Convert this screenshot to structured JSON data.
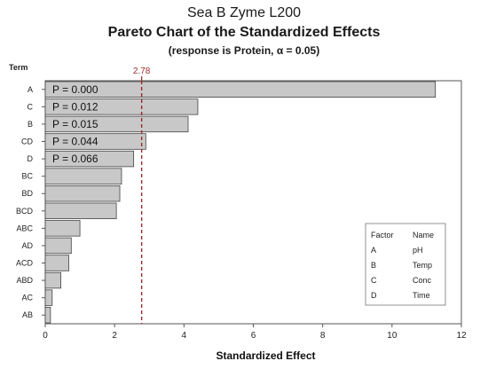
{
  "chart_data": {
    "type": "bar",
    "orientation": "horizontal",
    "title": "Sea B Zyme L200",
    "subtitle": "Pareto Chart of the Standardized Effects",
    "subtitle2": "(response is Protein, α = 0.05)",
    "ylabel": "Term",
    "xlabel": "Standardized Effect",
    "xlim": [
      0,
      12
    ],
    "xticks": [
      0,
      2,
      4,
      6,
      8,
      10,
      12
    ],
    "reference_line": {
      "value": 2.78,
      "label": "2.78",
      "color": "#9b2b2b"
    },
    "bar_color": "#c8c8c8",
    "terms": [
      "A",
      "C",
      "B",
      "CD",
      "D",
      "BC",
      "BD",
      "BCD",
      "ABC",
      "AD",
      "ACD",
      "ABD",
      "AC",
      "AB"
    ],
    "values": [
      11.25,
      4.4,
      4.12,
      2.9,
      2.55,
      2.2,
      2.15,
      2.05,
      1.0,
      0.75,
      0.68,
      0.45,
      0.2,
      0.15
    ],
    "p_labels": [
      "P = 0.000",
      "P = 0.012",
      "P = 0.015",
      "P = 0.044",
      "P = 0.066"
    ],
    "legend": {
      "header": [
        "Factor",
        "Name"
      ],
      "rows": [
        [
          "A",
          "pH"
        ],
        [
          "B",
          "Temp"
        ],
        [
          "C",
          "Conc"
        ],
        [
          "D",
          "Time"
        ]
      ],
      "placement": "bottom-right"
    }
  }
}
